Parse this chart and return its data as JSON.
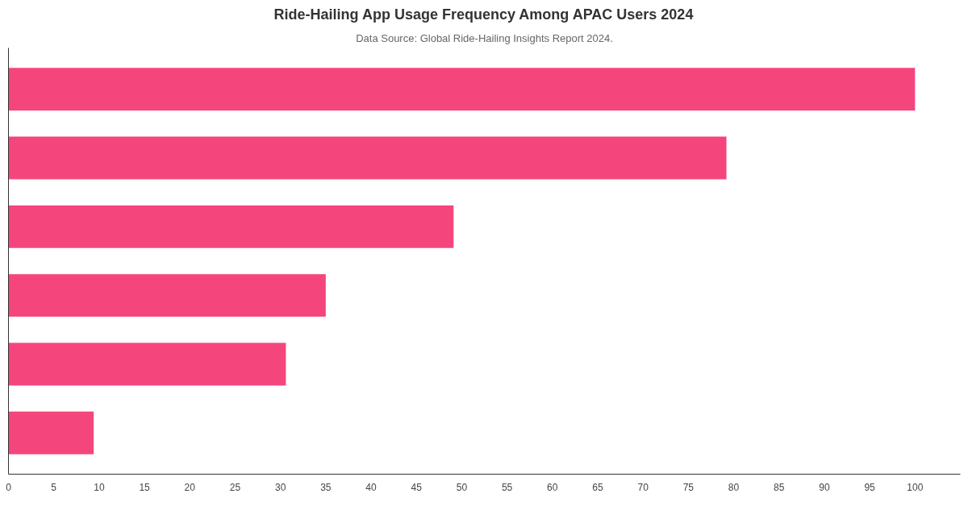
{
  "chart_data": {
    "type": "bar",
    "orientation": "horizontal",
    "title": "Ride-Hailing App Usage Frequency Among APAC Users 2024",
    "subtitle": "Data Source: Global Ride-Hailing Insights Report 2024.",
    "categories": [
      null,
      null,
      null,
      null,
      null,
      null
    ],
    "values": [
      100,
      79.2,
      49.1,
      35,
      30.6,
      9.4
    ],
    "color": "#f5457d",
    "xlim": [
      0,
      105
    ],
    "xticks": [
      0,
      5,
      10,
      15,
      20,
      25,
      30,
      35,
      40,
      45,
      50,
      55,
      60,
      65,
      70,
      75,
      80,
      85,
      90,
      95,
      100
    ],
    "grid": false
  }
}
